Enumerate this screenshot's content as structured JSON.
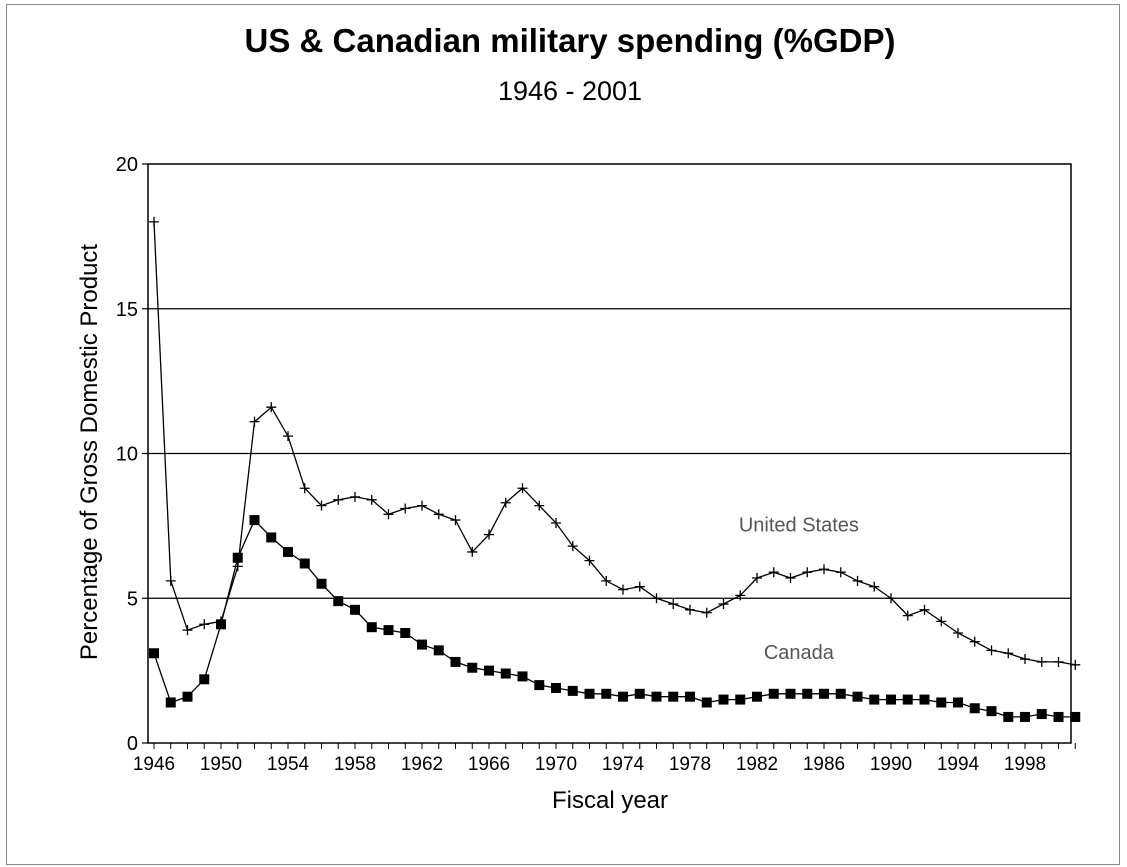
{
  "chart_data": {
    "type": "line",
    "title": "US & Canadian military spending (%GDP)",
    "subtitle": "1946 - 2001",
    "xlabel": "Fiscal year",
    "ylabel": "Percentage of Gross Domestic Product",
    "xlim": [
      1946,
      2001
    ],
    "ylim": [
      0,
      20
    ],
    "x_ticks": [
      1946,
      1950,
      1954,
      1958,
      1962,
      1966,
      1970,
      1974,
      1978,
      1982,
      1986,
      1990,
      1994,
      1998
    ],
    "y_ticks": [
      0,
      5,
      10,
      15,
      20
    ],
    "grid": "horizontal",
    "x": [
      1946,
      1947,
      1948,
      1949,
      1950,
      1951,
      1952,
      1953,
      1954,
      1955,
      1956,
      1957,
      1958,
      1959,
      1960,
      1961,
      1962,
      1963,
      1964,
      1965,
      1966,
      1967,
      1968,
      1969,
      1970,
      1971,
      1972,
      1973,
      1974,
      1975,
      1976,
      1977,
      1978,
      1979,
      1980,
      1981,
      1982,
      1983,
      1984,
      1985,
      1986,
      1987,
      1988,
      1989,
      1990,
      1991,
      1992,
      1993,
      1994,
      1995,
      1996,
      1997,
      1998,
      1999,
      2000,
      2001
    ],
    "series": [
      {
        "name": "United States",
        "marker": "plus",
        "color": "#000000",
        "values": [
          18.0,
          5.6,
          3.9,
          4.1,
          4.2,
          6.1,
          11.1,
          11.6,
          10.6,
          8.8,
          8.2,
          8.4,
          8.5,
          8.4,
          7.9,
          8.1,
          8.2,
          7.9,
          7.7,
          6.6,
          7.2,
          8.3,
          8.8,
          8.2,
          7.6,
          6.8,
          6.3,
          5.6,
          5.3,
          5.4,
          5.0,
          4.8,
          4.6,
          4.5,
          4.8,
          5.1,
          5.7,
          5.9,
          5.7,
          5.9,
          6.0,
          5.9,
          5.6,
          5.4,
          5.0,
          4.4,
          4.6,
          4.2,
          3.8,
          3.5,
          3.2,
          3.1,
          2.9,
          2.8,
          2.8,
          2.7
        ]
      },
      {
        "name": "Canada",
        "marker": "square",
        "color": "#000000",
        "values": [
          3.1,
          1.4,
          1.6,
          2.2,
          4.1,
          6.4,
          7.7,
          7.1,
          6.6,
          6.2,
          5.5,
          4.9,
          4.6,
          4.0,
          3.9,
          3.8,
          3.4,
          3.2,
          2.8,
          2.6,
          2.5,
          2.4,
          2.3,
          2.0,
          1.9,
          1.8,
          1.7,
          1.7,
          1.6,
          1.7,
          1.6,
          1.6,
          1.6,
          1.4,
          1.5,
          1.5,
          1.6,
          1.7,
          1.7,
          1.7,
          1.7,
          1.7,
          1.6,
          1.5,
          1.5,
          1.5,
          1.5,
          1.4,
          1.4,
          1.2,
          1.1,
          0.9,
          0.9,
          1.0,
          0.9,
          0.9
        ]
      }
    ],
    "annotations": [
      {
        "text": "United States",
        "x": 1984.5,
        "y": 7.3
      },
      {
        "text": "Canada",
        "x": 1984.5,
        "y": 2.9
      }
    ]
  }
}
